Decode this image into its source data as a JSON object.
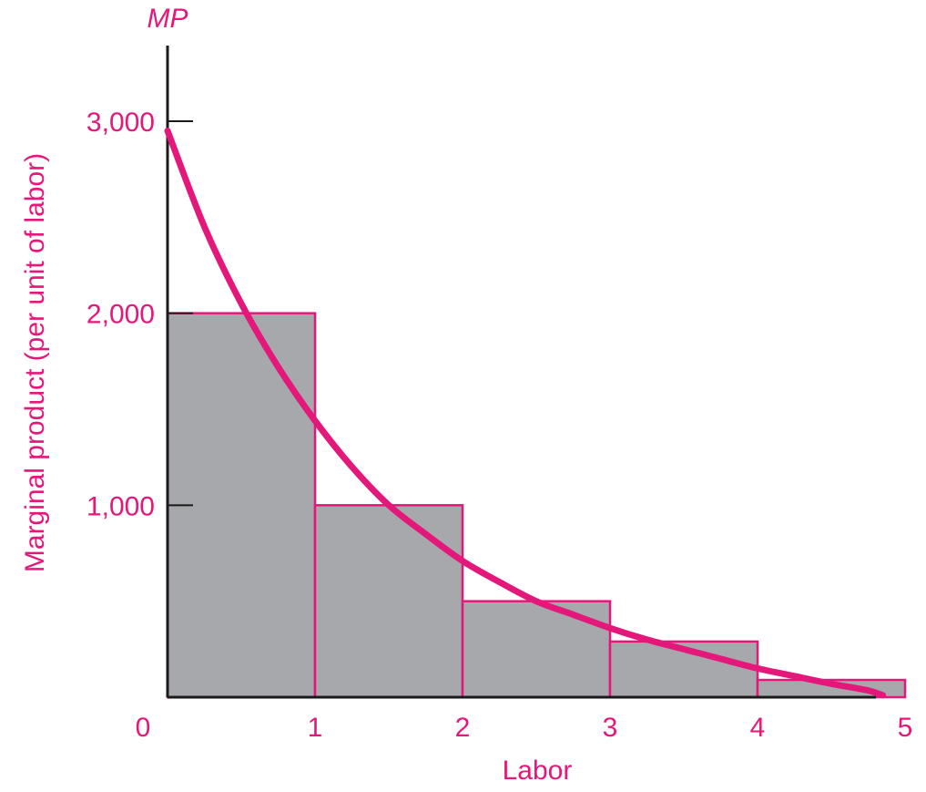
{
  "chart_data": {
    "type": "bar",
    "title": "",
    "xlabel": "Labor",
    "ylabel": "Marginal product (per unit of labor)",
    "y_axis_top_label": "MP",
    "x_ticks": [
      "0",
      "1",
      "2",
      "3",
      "4",
      "5"
    ],
    "y_ticks": [
      "1,000",
      "2,000",
      "3,000"
    ],
    "xlim": [
      0,
      5
    ],
    "ylim": [
      0,
      3000
    ],
    "bars": [
      {
        "x0": 0,
        "x1": 1,
        "value": 2000
      },
      {
        "x0": 1,
        "x1": 2,
        "value": 1000
      },
      {
        "x0": 2,
        "x1": 3,
        "value": 500
      },
      {
        "x0": 3,
        "x1": 4,
        "value": 290
      },
      {
        "x0": 4,
        "x1": 5,
        "value": 90
      }
    ],
    "curve": {
      "points": [
        [
          0,
          2950
        ],
        [
          0.25,
          2450
        ],
        [
          0.5,
          2050
        ],
        [
          0.75,
          1720
        ],
        [
          1,
          1440
        ],
        [
          1.25,
          1200
        ],
        [
          1.5,
          1000
        ],
        [
          1.75,
          850
        ],
        [
          2,
          710
        ],
        [
          2.25,
          600
        ],
        [
          2.5,
          500
        ],
        [
          2.75,
          430
        ],
        [
          3,
          360
        ],
        [
          3.25,
          300
        ],
        [
          3.5,
          250
        ],
        [
          3.75,
          200
        ],
        [
          4,
          150
        ],
        [
          4.25,
          110
        ],
        [
          4.5,
          70
        ],
        [
          4.75,
          35
        ],
        [
          4.85,
          10
        ]
      ]
    },
    "grid": false,
    "legend": "none",
    "colors": {
      "accent": "#e4177a",
      "bar_fill": "#a7a8ab",
      "axis": "#1a1a1a"
    }
  }
}
